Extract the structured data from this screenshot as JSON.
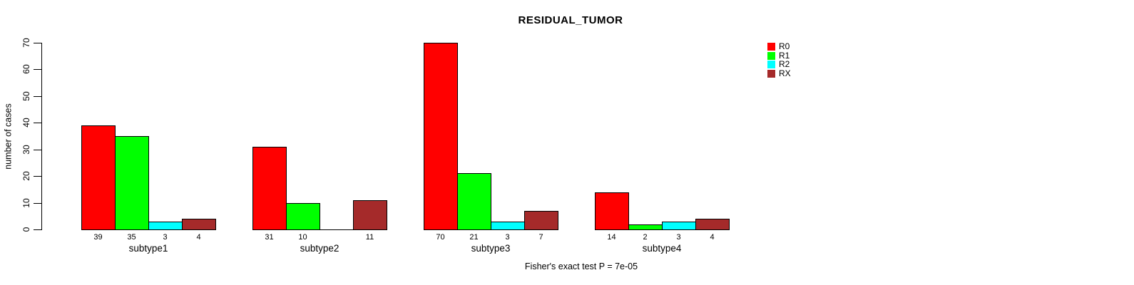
{
  "chart_data": {
    "type": "bar",
    "title": "RESIDUAL_TUMOR",
    "ylabel": "number of cases",
    "xlabel": "",
    "categories": [
      "subtype1",
      "subtype2",
      "subtype3",
      "subtype4"
    ],
    "series": [
      {
        "name": "R0",
        "color": "#FF0000",
        "values": [
          39,
          31,
          70,
          14
        ]
      },
      {
        "name": "R1",
        "color": "#00FF00",
        "values": [
          35,
          10,
          21,
          2
        ]
      },
      {
        "name": "R2",
        "color": "#00FFFF",
        "values": [
          3,
          0,
          3,
          3
        ]
      },
      {
        "name": "RX",
        "color": "#A52A2A",
        "values": [
          4,
          11,
          7,
          4
        ]
      }
    ],
    "bar_labels": [
      [
        "39",
        "35",
        "3",
        "4"
      ],
      [
        "31",
        "10",
        "",
        "11"
      ],
      [
        "70",
        "21",
        "3",
        "7"
      ],
      [
        "14",
        "2",
        "3",
        "4"
      ]
    ],
    "ylim": [
      0,
      70
    ],
    "yticks": [
      0,
      10,
      20,
      30,
      40,
      50,
      60,
      70
    ],
    "grid": false,
    "legend_position": "top-right",
    "annotation": "Fisher's exact test P = 7e-05",
    "axis_color": "#000000",
    "background_color": "#FFFFFF"
  }
}
